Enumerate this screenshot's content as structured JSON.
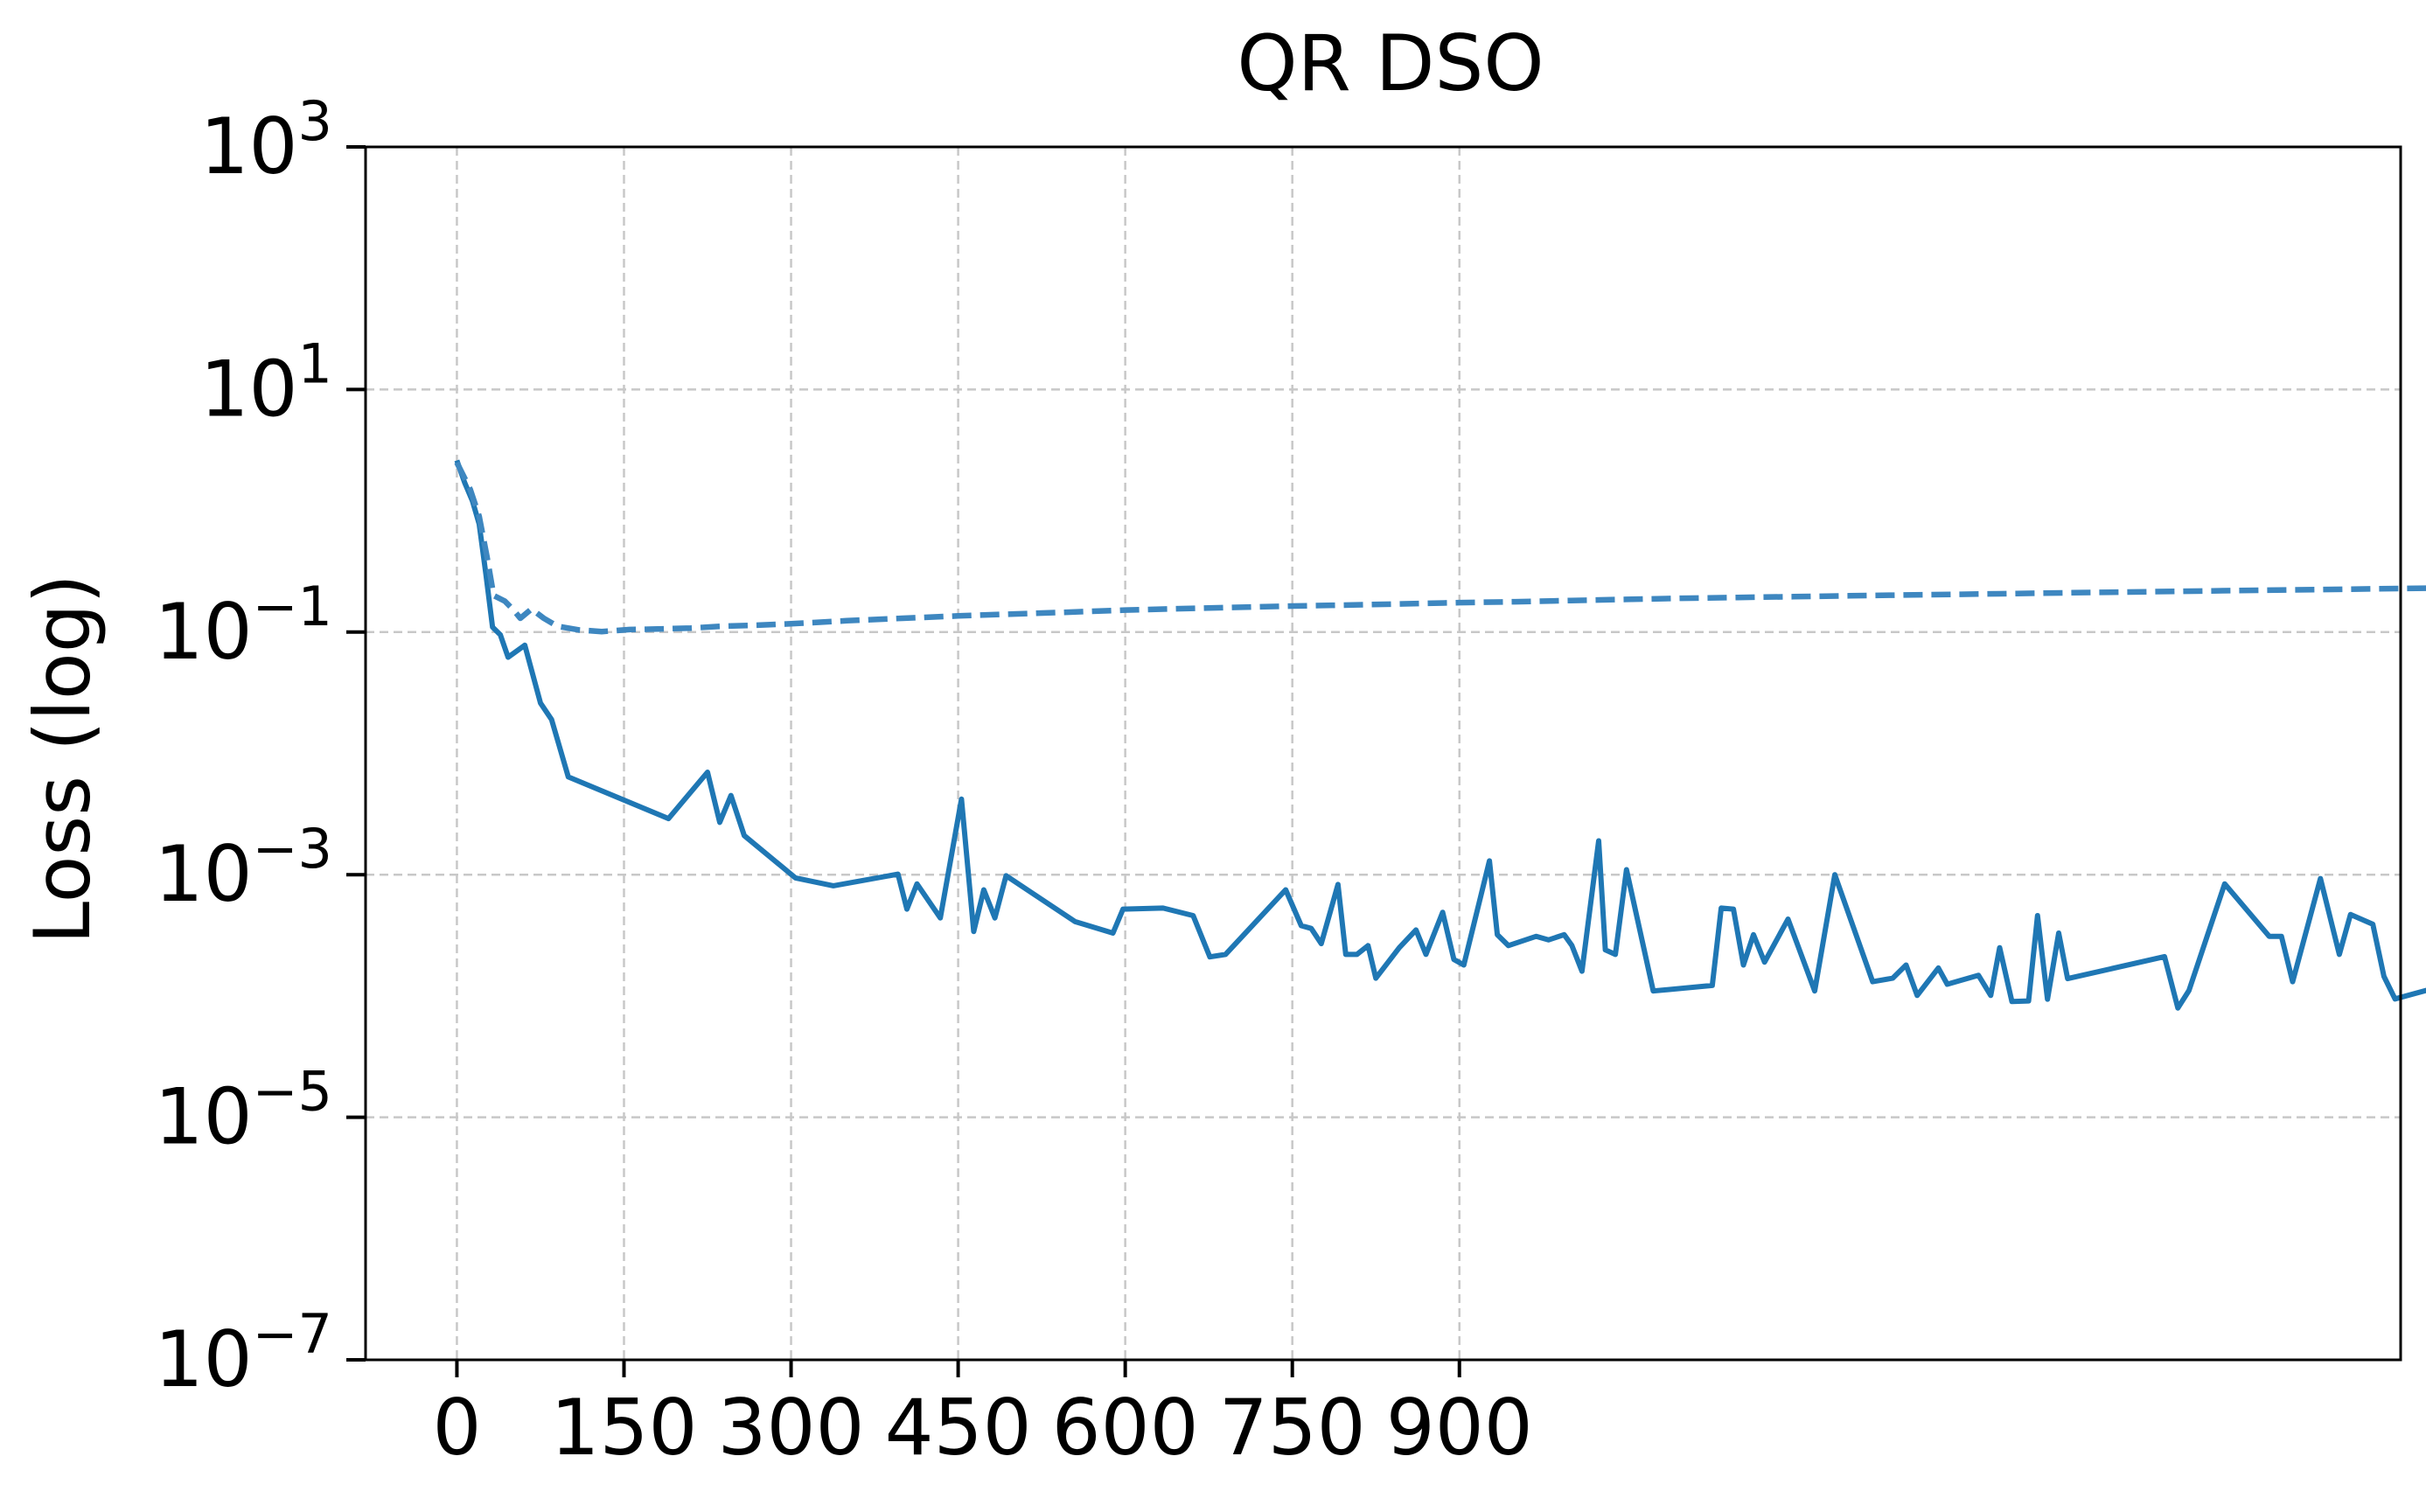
{
  "chart_data": {
    "type": "line",
    "title": "QR DSO",
    "xlabel": "",
    "ylabel": "Loss (log)",
    "yscale": "log",
    "xlim": [
      -82,
      1745
    ],
    "ylim": [
      1e-07,
      1000
    ],
    "x_ticks": [
      0,
      150,
      300,
      450,
      600,
      750,
      900
    ],
    "x_tick_labels": [
      "0",
      "150",
      "300",
      "450",
      "600",
      "750",
      "900"
    ],
    "y_ticks": [
      {
        "base": "10",
        "exp": "−7",
        "value": 1e-07
      },
      {
        "base": "10",
        "exp": "−5",
        "value": 1e-05
      },
      {
        "base": "10",
        "exp": "−3",
        "value": 0.001
      },
      {
        "base": "10",
        "exp": "−1",
        "value": 0.1
      },
      {
        "base": "10",
        "exp": "1",
        "value": 10
      },
      {
        "base": "10",
        "exp": "3",
        "value": 1000
      }
    ],
    "grid": true,
    "colors": {
      "solid": "#1f77b4",
      "dashed": "#3e87c0"
    },
    "series": [
      {
        "style": "solid",
        "points": [
          [
            0,
            2.6
          ],
          [
            7,
            1.7
          ],
          [
            14,
            1.2
          ],
          [
            20,
            0.78
          ],
          [
            26,
            0.3
          ],
          [
            32,
            0.11
          ],
          [
            39,
            0.095
          ],
          [
            46,
            0.062
          ],
          [
            61,
            0.078
          ],
          [
            75,
            0.026
          ],
          [
            85,
            0.019
          ],
          [
            100,
            0.0064
          ],
          [
            190,
            0.0029
          ],
          [
            225,
            0.007
          ],
          [
            236,
            0.0027
          ],
          [
            246,
            0.0045
          ],
          [
            258,
            0.0021
          ],
          [
            304,
            0.00094
          ],
          [
            338,
            0.00081
          ],
          [
            396,
            0.00101
          ],
          [
            404,
            0.00052
          ],
          [
            413,
            0.00084
          ],
          [
            434,
            0.00044
          ],
          [
            453,
            0.0042
          ],
          [
            464,
            0.00034
          ],
          [
            473,
            0.00075
          ],
          [
            483,
            0.00044
          ],
          [
            493,
            0.00098
          ],
          [
            555,
            0.00041
          ],
          [
            589,
            0.00033
          ],
          [
            598,
            0.00052
          ],
          [
            634,
            0.00053
          ],
          [
            661,
            0.00046
          ],
          [
            676,
            0.00021
          ],
          [
            690,
            0.00022
          ],
          [
            744,
            0.00075
          ],
          [
            758,
            0.00038
          ],
          [
            767,
            0.00036
          ],
          [
            776,
            0.00027
          ],
          [
            791,
            0.00083
          ],
          [
            798,
            0.00022
          ],
          [
            808,
            0.00022
          ],
          [
            818,
            0.00026
          ],
          [
            825,
            0.00014
          ],
          [
            846,
            0.00025
          ],
          [
            861,
            0.00035
          ],
          [
            870,
            0.00022
          ],
          [
            885,
            0.00049
          ],
          [
            895,
            0.0002
          ],
          [
            904,
            0.00018
          ],
          [
            927,
            0.0013
          ],
          [
            934,
            0.00032
          ],
          [
            944,
            0.00026
          ],
          [
            969,
            0.00031
          ],
          [
            980,
            0.00029
          ],
          [
            994,
            0.00032
          ],
          [
            1001,
            0.00026
          ],
          [
            1010,
            0.00016
          ],
          [
            1025,
            0.0019
          ],
          [
            1031,
            0.00024
          ],
          [
            1040,
            0.00022
          ],
          [
            1050,
            0.0011
          ],
          [
            1074,
            0.00011
          ],
          [
            1127,
            0.000122
          ],
          [
            1135,
            0.00053
          ],
          [
            1146,
            0.00052
          ],
          [
            1155,
            0.00018
          ],
          [
            1164,
            0.00032
          ],
          [
            1174,
            0.00019
          ],
          [
            1195,
            0.00043
          ],
          [
            1219,
            0.00011
          ],
          [
            1237,
            0.001
          ],
          [
            1271,
            0.000131
          ],
          [
            1289,
            0.00014
          ],
          [
            1301,
            0.00018
          ],
          [
            1311,
            0.000101
          ],
          [
            1330,
            0.00017
          ],
          [
            1338,
            0.000125
          ],
          [
            1366,
            0.000148
          ],
          [
            1377,
            0.000101
          ],
          [
            1385,
            0.00025
          ],
          [
            1396,
            9e-05
          ],
          [
            1411,
            9.1e-05
          ],
          [
            1419,
            0.00046
          ],
          [
            1428,
            9.4e-05
          ],
          [
            1438,
            0.00033
          ],
          [
            1446,
            0.000139
          ],
          [
            1533,
            0.000211
          ],
          [
            1545,
            7.95e-05
          ],
          [
            1555,
            0.000111
          ],
          [
            1587,
            0.00084
          ],
          [
            1627,
            0.00031
          ],
          [
            1638,
            0.00031
          ],
          [
            1648,
            0.000131
          ],
          [
            1673,
            0.00093
          ],
          [
            1690,
            0.00022
          ],
          [
            1700,
            0.00047
          ],
          [
            1720,
            0.00039
          ],
          [
            1730,
            0.000145
          ],
          [
            1740,
            9.45e-05
          ],
          [
            1788,
            0.000125
          ],
          [
            1795,
            9.01e-05
          ],
          [
            1803,
            7.03e-05
          ],
          [
            1823,
            0.000162
          ]
        ]
      },
      {
        "style": "dashed",
        "points": [
          [
            0,
            2.5
          ],
          [
            12,
            1.5
          ],
          [
            20,
            0.9
          ],
          [
            27,
            0.42
          ],
          [
            33,
            0.2
          ],
          [
            43,
            0.18
          ],
          [
            50,
            0.155
          ],
          [
            57,
            0.13
          ],
          [
            67,
            0.155
          ],
          [
            78,
            0.13
          ],
          [
            90,
            0.112
          ],
          [
            110,
            0.104
          ],
          [
            130,
            0.101
          ],
          [
            155,
            0.105
          ],
          [
            180,
            0.106
          ],
          [
            210,
            0.108
          ],
          [
            240,
            0.112
          ],
          [
            270,
            0.114
          ],
          [
            300,
            0.117
          ],
          [
            350,
            0.124
          ],
          [
            400,
            0.13
          ],
          [
            450,
            0.136
          ],
          [
            500,
            0.141
          ],
          [
            550,
            0.146
          ],
          [
            600,
            0.152
          ],
          [
            650,
            0.156
          ],
          [
            700,
            0.16
          ],
          [
            750,
            0.164
          ],
          [
            800,
            0.167
          ],
          [
            850,
            0.171
          ],
          [
            900,
            0.175
          ],
          [
            950,
            0.178
          ],
          [
            1000,
            0.182
          ],
          [
            1050,
            0.186
          ],
          [
            1100,
            0.19
          ],
          [
            1150,
            0.193
          ],
          [
            1200,
            0.196
          ],
          [
            1250,
            0.199
          ],
          [
            1300,
            0.202
          ],
          [
            1350,
            0.205
          ],
          [
            1400,
            0.208
          ],
          [
            1450,
            0.211
          ],
          [
            1500,
            0.214
          ],
          [
            1550,
            0.217
          ],
          [
            1600,
            0.22
          ],
          [
            1650,
            0.223
          ],
          [
            1700,
            0.226
          ],
          [
            1750,
            0.229
          ],
          [
            1800,
            0.232
          ],
          [
            1830,
            0.234
          ]
        ]
      }
    ]
  }
}
